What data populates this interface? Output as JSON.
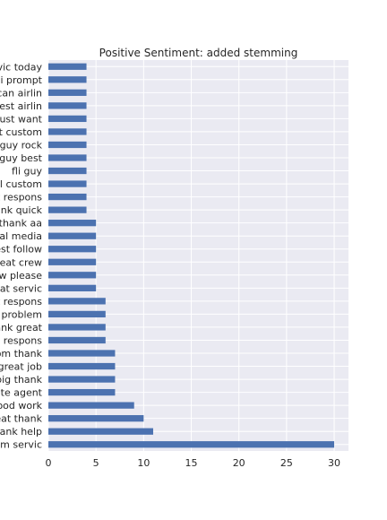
{
  "chart_data": {
    "type": "bar",
    "orientation": "horizontal",
    "title": "Positive Sentiment: added stemming",
    "xlabel": "",
    "ylabel": "",
    "xlim": [
      0,
      31.5
    ],
    "xticks": [
      0,
      5,
      10,
      15,
      20,
      25,
      30
    ],
    "grid": true,
    "bar_color": "#4c72b0",
    "background_color": "#eaeaf2",
    "categories": [
      "vic today",
      "ci prompt",
      "can airlin",
      "best airlin",
      "just want",
      "at custom",
      "guy rock",
      "guy best",
      "fli guy",
      "el custom",
      "t respons",
      "ank quick",
      "thank aa",
      "ial media",
      "est follow",
      "reat crew",
      "w please",
      "eat servic",
      "t respons",
      "problem",
      "ank great",
      "respons",
      "om thank",
      "great job",
      "big thank",
      "ate agent",
      "ood work",
      "eat thank",
      "hank help",
      "om servic"
    ],
    "values": [
      4,
      4,
      4,
      4,
      4,
      4,
      4,
      4,
      4,
      4,
      4,
      4,
      5,
      5,
      5,
      5,
      5,
      5,
      6,
      6,
      6,
      6,
      7,
      7,
      7,
      7,
      9,
      10,
      11,
      30
    ]
  }
}
